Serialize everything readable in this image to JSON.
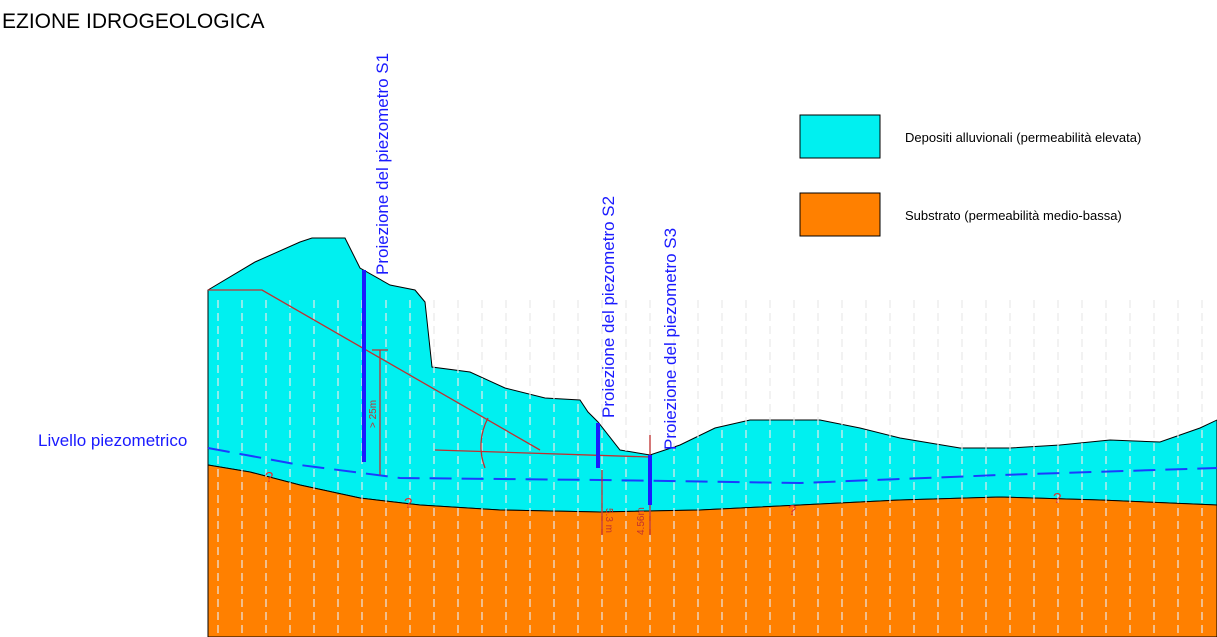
{
  "title": "EZIONE IDROGEOLOGICA",
  "legend": [
    {
      "label": "Depositi alluvionali (permeabilità elevata)"
    },
    {
      "label": "Substrato (permeabilità medio-bassa)"
    }
  ],
  "piezometers": [
    {
      "label": "Proiezione del piezometro S1",
      "depth": "> 25m"
    },
    {
      "label": "Proiezione del piezometro S2",
      "depth": "5.3 m"
    },
    {
      "label": "Proiezione del piezometro S3",
      "depth": "4.56m"
    }
  ],
  "water_level_label": "Livello piezometrico",
  "uncertain_marks": [
    "?",
    "?",
    "?",
    "?"
  ]
}
